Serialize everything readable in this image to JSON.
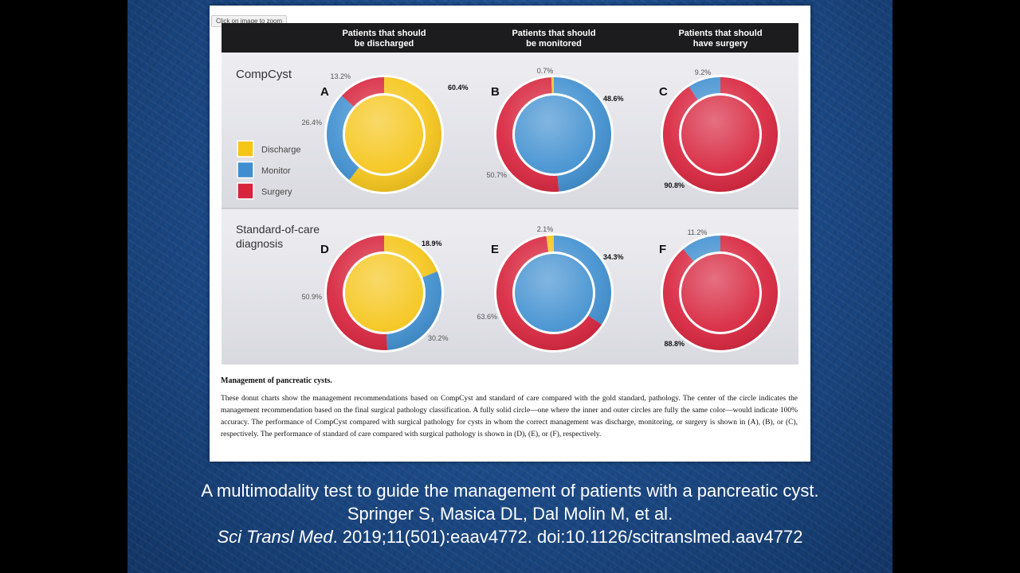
{
  "slide": {
    "zoom_hint": "Click on image to zoom",
    "caption_title": "Management of pancreatic cysts.",
    "caption_text": "These donut charts show the management recommendations based on CompCyst and standard of care compared with the gold standard, pathology. The center of the circle indicates the management recommendation based on the final surgical pathology classification. A fully solid circle—one where the inner and outer circles are fully the same color—would indicate 100% accuracy. The performance of CompCyst compared with surgical pathology for cysts in whom the correct management was discharge, monitoring, or surgery is shown in (A), (B), or (C), respectively. The performance of standard of care compared with surgical pathology is shown in (D), (E), or (F), respectively."
  },
  "citation": {
    "line1": "A multimodality test to guide the management of patients with a pancreatic cyst.",
    "line2": "Springer S, Masica DL, Dal Molin M, et al.",
    "journal": "Sci Transl Med",
    "line3_rest": ". 2019;11(501):eaav4772. doi:10.1126/scitranslmed.aav4772"
  },
  "colors": {
    "discharge": "#f5c518",
    "monitor": "#3f8fd0",
    "surgery": "#d7233c",
    "header": "#1c1c1e"
  },
  "chart_data": {
    "type": "pie",
    "column_headers": [
      "Patients that should be discharged",
      "Patients that should be monitored",
      "Patients that should have surgery"
    ],
    "row_labels": [
      "CompCyst",
      "Standard-of-care diagnosis"
    ],
    "legend": [
      {
        "name": "Discharge",
        "color_key": "discharge"
      },
      {
        "name": "Monitor",
        "color_key": "monitor"
      },
      {
        "name": "Surgery",
        "color_key": "surgery"
      }
    ],
    "charts": [
      {
        "panel": "A",
        "center": "discharge",
        "slices": [
          {
            "cat": "discharge",
            "value": 60.4,
            "label": "60.4%",
            "bold": true
          },
          {
            "cat": "monitor",
            "value": 26.4,
            "label": "26.4%",
            "bold": false
          },
          {
            "cat": "surgery",
            "value": 13.2,
            "label": "13.2%",
            "bold": false
          }
        ]
      },
      {
        "panel": "B",
        "center": "monitor",
        "slices": [
          {
            "cat": "monitor",
            "value": 48.6,
            "label": "48.6%",
            "bold": true
          },
          {
            "cat": "surgery",
            "value": 50.7,
            "label": "50.7%",
            "bold": false
          },
          {
            "cat": "discharge",
            "value": 0.7,
            "label": "0.7%",
            "bold": false
          }
        ]
      },
      {
        "panel": "C",
        "center": "surgery",
        "slices": [
          {
            "cat": "surgery",
            "value": 90.8,
            "label": "90.8%",
            "bold": true
          },
          {
            "cat": "monitor",
            "value": 9.2,
            "label": "9.2%",
            "bold": false
          }
        ]
      },
      {
        "panel": "D",
        "center": "discharge",
        "slices": [
          {
            "cat": "discharge",
            "value": 18.9,
            "label": "18.9%",
            "bold": true
          },
          {
            "cat": "monitor",
            "value": 30.2,
            "label": "30.2%",
            "bold": false
          },
          {
            "cat": "surgery",
            "value": 50.9,
            "label": "50.9%",
            "bold": false
          }
        ]
      },
      {
        "panel": "E",
        "center": "monitor",
        "slices": [
          {
            "cat": "monitor",
            "value": 34.3,
            "label": "34.3%",
            "bold": true
          },
          {
            "cat": "surgery",
            "value": 63.6,
            "label": "63.6%",
            "bold": false
          },
          {
            "cat": "discharge",
            "value": 2.1,
            "label": "2.1%",
            "bold": false
          }
        ]
      },
      {
        "panel": "F",
        "center": "surgery",
        "slices": [
          {
            "cat": "surgery",
            "value": 88.8,
            "label": "88.8%",
            "bold": true
          },
          {
            "cat": "monitor",
            "value": 11.2,
            "label": "11.2%",
            "bold": false
          }
        ]
      }
    ]
  }
}
